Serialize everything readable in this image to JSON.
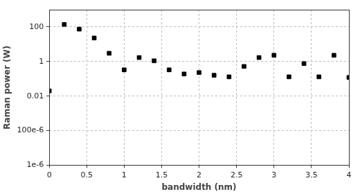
{
  "chart_data": {
    "type": "scatter",
    "x_label": "bandwidth (nm)",
    "y_label": "Raman power (W)",
    "x": [
      0,
      0.2,
      0.4,
      0.6,
      0.8,
      1.0,
      1.2,
      1.4,
      1.6,
      1.8,
      2.0,
      2.2,
      2.4,
      2.6,
      2.8,
      3.0,
      3.2,
      3.4,
      3.6,
      3.8,
      4.0
    ],
    "values": [
      0.02,
      140,
      75,
      23,
      3,
      0.33,
      1.7,
      1.1,
      0.33,
      0.19,
      0.23,
      0.16,
      0.13,
      0.52,
      1.7,
      2.3,
      0.13,
      0.76,
      0.13,
      2.3,
      0.12
    ],
    "color": "#000000",
    "marker": "square",
    "xlim": [
      0,
      4
    ],
    "xticks": [
      0,
      0.5,
      1,
      1.5,
      2,
      2.5,
      3,
      3.5,
      4
    ],
    "ylim": [
      1e-06,
      1000
    ],
    "yticks": [
      {
        "value": 1e-06,
        "label": "1e-6"
      },
      {
        "value": 0.0001,
        "label": "100e-6"
      },
      0.01,
      1,
      100
    ],
    "log": "y",
    "grid": true
  }
}
